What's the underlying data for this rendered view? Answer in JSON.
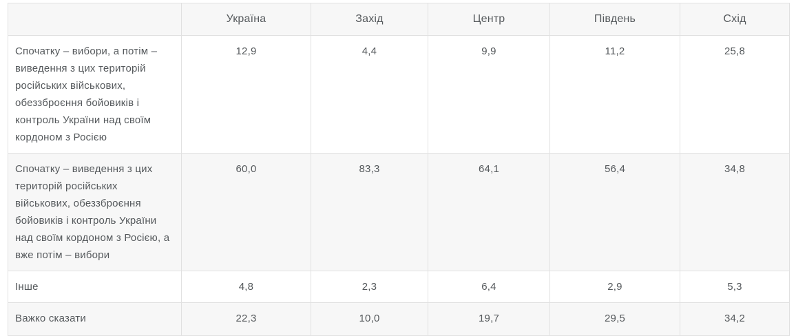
{
  "colors": {
    "header_background": "#f7f7f7",
    "stripe_background": "#f7f7f7",
    "row_background": "#ffffff",
    "border": "#e1e1e1",
    "text": "#55595c"
  },
  "table": {
    "columns": [
      "",
      "Україна",
      "Захід",
      "Центр",
      "Південь",
      "Схід"
    ],
    "rows": [
      {
        "label": "Спочатку – вибори, а потім – виведення з цих територій російських військових, обеззброєння бойовиків і контроль України над своїм кордоном з Росією",
        "values": [
          "12,9",
          "4,4",
          "9,9",
          "11,2",
          "25,8"
        ]
      },
      {
        "label": "Спочатку – виведення з цих територій російських військових, обеззброєння бойовиків і контроль України над своїм кордоном з Росією, а вже потім – вибори",
        "values": [
          "60,0",
          "83,3",
          "64,1",
          "56,4",
          "34,8"
        ]
      },
      {
        "label": "Інше",
        "values": [
          "4,8",
          "2,3",
          "6,4",
          "2,9",
          "5,3"
        ]
      },
      {
        "label": "Важко сказати",
        "values": [
          "22,3",
          "10,0",
          "19,7",
          "29,5",
          "34,2"
        ]
      }
    ]
  },
  "chart_data": {
    "type": "table",
    "categories": [
      "Україна",
      "Захід",
      "Центр",
      "Південь",
      "Схід"
    ],
    "series": [
      {
        "name": "Спочатку – вибори, а потім – виведення з цих територій російських військових, обеззброєння бойовиків і контроль України над своїм кордоном з Росією",
        "values": [
          12.9,
          4.4,
          9.9,
          11.2,
          25.8
        ]
      },
      {
        "name": "Спочатку – виведення з цих територій російських військових, обеззброєння бойовиків і контроль України над своїм кордоном з Росією, а вже потім – вибори",
        "values": [
          60.0,
          83.3,
          64.1,
          56.4,
          34.8
        ]
      },
      {
        "name": "Інше",
        "values": [
          4.8,
          2.3,
          6.4,
          2.9,
          5.3
        ]
      },
      {
        "name": "Важко сказати",
        "values": [
          22.3,
          10.0,
          19.7,
          29.5,
          34.2
        ]
      }
    ],
    "title": "",
    "xlabel": "",
    "ylabel": "",
    "value_format": "percent, comma decimal separator",
    "legend_position": "none",
    "grid": true
  }
}
